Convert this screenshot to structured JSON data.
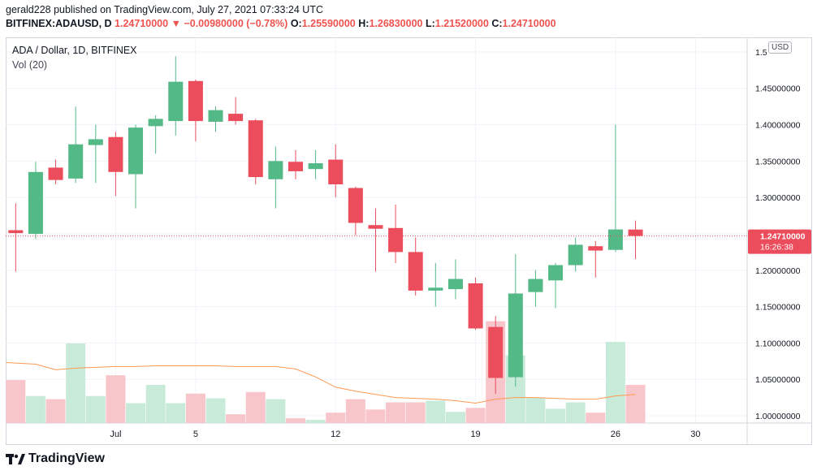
{
  "header": {
    "line1": "gerald228 published on TradingView.com, July 27, 2021 07:33:24 UTC",
    "symbol": "BITFINEX:ADAUSD, D",
    "last": "1.24710000",
    "change": "−0.00980000 (−0.78%)",
    "o_label": "O:",
    "o_value": "1.25590000",
    "h_label": "H:",
    "h_value": "1.26830000",
    "l_label": "L:",
    "l_value": "1.21520000",
    "c_label": "C:",
    "c_value": "1.24710000"
  },
  "legend": {
    "title": "ADA / Dollar, 1D, BITFINEX",
    "volume": "Vol (20)"
  },
  "currency": "USD",
  "price_tag": {
    "price": "1.24710000",
    "countdown": "16:26:38"
  },
  "footer": {
    "brand": "TradingView"
  },
  "colors": {
    "up": "#26a69a",
    "up_fill": "#53b987",
    "down": "#eb4d5c",
    "vol_up": "#c8ebd9",
    "vol_down": "#f8c5cb",
    "ma": "#ff9850",
    "grid": "#f0f3fa"
  },
  "chart_data": {
    "type": "candlestick",
    "title": "ADA / Dollar, 1D, BITFINEX",
    "y_ticks": [
      "1.00000000",
      "1.05000000",
      "1.10000000",
      "1.15000000",
      "1.20000000",
      "1.25000000",
      "1.30000000",
      "1.35000000",
      "1.40000000",
      "1.45000000",
      "1.5"
    ],
    "ylim": [
      0.99,
      1.52
    ],
    "x_ticks": [
      {
        "label": "Jul",
        "index": 5
      },
      {
        "label": "5",
        "index": 9
      },
      {
        "label": "12",
        "index": 16
      },
      {
        "label": "19",
        "index": 23
      },
      {
        "label": "26",
        "index": 30
      },
      {
        "label": "30",
        "index": 34
      }
    ],
    "x_index_range": [
      -0.5,
      37
    ],
    "candles": [
      {
        "date": "2021-06-26",
        "o": 1.255,
        "h": 1.292,
        "l": 1.198,
        "c": 1.251
      },
      {
        "date": "2021-06-27",
        "o": 1.25,
        "h": 1.349,
        "l": 1.243,
        "c": 1.335
      },
      {
        "date": "2021-06-28",
        "o": 1.341,
        "h": 1.352,
        "l": 1.318,
        "c": 1.324
      },
      {
        "date": "2021-06-29",
        "o": 1.326,
        "h": 1.425,
        "l": 1.32,
        "c": 1.373
      },
      {
        "date": "2021-06-30",
        "o": 1.372,
        "h": 1.4,
        "l": 1.32,
        "c": 1.38
      },
      {
        "date": "2021-07-01",
        "o": 1.383,
        "h": 1.39,
        "l": 1.302,
        "c": 1.335
      },
      {
        "date": "2021-07-02",
        "o": 1.332,
        "h": 1.4,
        "l": 1.285,
        "c": 1.396
      },
      {
        "date": "2021-07-03",
        "o": 1.398,
        "h": 1.413,
        "l": 1.36,
        "c": 1.408
      },
      {
        "date": "2021-07-04",
        "o": 1.405,
        "h": 1.494,
        "l": 1.385,
        "c": 1.459
      },
      {
        "date": "2021-07-05",
        "o": 1.46,
        "h": 1.462,
        "l": 1.377,
        "c": 1.405
      },
      {
        "date": "2021-07-06",
        "o": 1.404,
        "h": 1.425,
        "l": 1.39,
        "c": 1.42
      },
      {
        "date": "2021-07-07",
        "o": 1.415,
        "h": 1.438,
        "l": 1.4,
        "c": 1.405
      },
      {
        "date": "2021-07-08",
        "o": 1.406,
        "h": 1.408,
        "l": 1.318,
        "c": 1.328
      },
      {
        "date": "2021-07-09",
        "o": 1.325,
        "h": 1.37,
        "l": 1.285,
        "c": 1.35
      },
      {
        "date": "2021-07-10",
        "o": 1.349,
        "h": 1.365,
        "l": 1.325,
        "c": 1.336
      },
      {
        "date": "2021-07-11",
        "o": 1.339,
        "h": 1.365,
        "l": 1.325,
        "c": 1.347
      },
      {
        "date": "2021-07-12",
        "o": 1.352,
        "h": 1.373,
        "l": 1.3,
        "c": 1.318
      },
      {
        "date": "2021-07-13",
        "o": 1.313,
        "h": 1.315,
        "l": 1.248,
        "c": 1.265
      },
      {
        "date": "2021-07-14",
        "o": 1.262,
        "h": 1.285,
        "l": 1.198,
        "c": 1.257
      },
      {
        "date": "2021-07-15",
        "o": 1.258,
        "h": 1.29,
        "l": 1.21,
        "c": 1.225
      },
      {
        "date": "2021-07-16",
        "o": 1.225,
        "h": 1.245,
        "l": 1.165,
        "c": 1.172
      },
      {
        "date": "2021-07-17",
        "o": 1.172,
        "h": 1.21,
        "l": 1.15,
        "c": 1.176
      },
      {
        "date": "2021-07-18",
        "o": 1.174,
        "h": 1.215,
        "l": 1.16,
        "c": 1.188
      },
      {
        "date": "2021-07-19",
        "o": 1.182,
        "h": 1.19,
        "l": 1.118,
        "c": 1.12
      },
      {
        "date": "2021-07-20",
        "o": 1.122,
        "h": 1.137,
        "l": 1.03,
        "c": 1.052
      },
      {
        "date": "2021-07-21",
        "o": 1.053,
        "h": 1.222,
        "l": 1.04,
        "c": 1.168
      },
      {
        "date": "2021-07-22",
        "o": 1.17,
        "h": 1.2,
        "l": 1.15,
        "c": 1.188
      },
      {
        "date": "2021-07-23",
        "o": 1.186,
        "h": 1.21,
        "l": 1.148,
        "c": 1.207
      },
      {
        "date": "2021-07-24",
        "o": 1.207,
        "h": 1.245,
        "l": 1.198,
        "c": 1.235
      },
      {
        "date": "2021-07-25",
        "o": 1.233,
        "h": 1.24,
        "l": 1.19,
        "c": 1.227
      },
      {
        "date": "2021-07-26",
        "o": 1.228,
        "h": 1.4,
        "l": 1.225,
        "c": 1.256
      },
      {
        "date": "2021-07-27",
        "o": 1.2559,
        "h": 1.2683,
        "l": 1.2152,
        "c": 1.2471
      }
    ],
    "volume_relative": [
      0.54,
      0.34,
      0.3,
      1.0,
      0.34,
      0.6,
      0.25,
      0.48,
      0.25,
      0.37,
      0.31,
      0.11,
      0.39,
      0.3,
      0.06,
      0.04,
      0.13,
      0.3,
      0.17,
      0.26,
      0.26,
      0.28,
      0.14,
      0.19,
      1.28,
      0.85,
      0.32,
      0.18,
      0.26,
      0.13,
      1.02,
      0.48
    ],
    "volume_ma_relative": [
      0.76,
      0.74,
      0.67,
      0.69,
      0.7,
      0.71,
      0.71,
      0.72,
      0.72,
      0.72,
      0.72,
      0.71,
      0.71,
      0.71,
      0.68,
      0.58,
      0.45,
      0.4,
      0.36,
      0.32,
      0.31,
      0.3,
      0.28,
      0.25,
      0.3,
      0.32,
      0.32,
      0.31,
      0.3,
      0.3,
      0.34,
      0.36
    ]
  }
}
